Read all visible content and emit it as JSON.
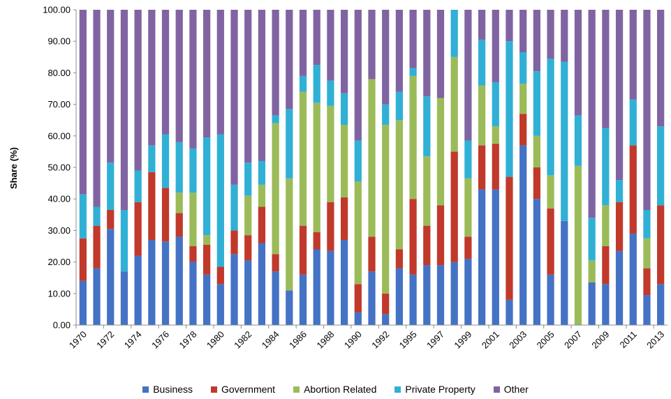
{
  "chart_data": {
    "type": "bar",
    "stacked": true,
    "title": "",
    "xlabel": "",
    "ylabel": "Share (%)",
    "ylim": [
      0,
      100
    ],
    "yticks": [
      "0.00",
      "10.00",
      "20.00",
      "30.00",
      "40.00",
      "50.00",
      "60.00",
      "70.00",
      "80.00",
      "90.00",
      "100.00"
    ],
    "grid": false,
    "legend_position": "bottom",
    "categories": [
      "1970",
      "1971",
      "1972",
      "1973",
      "1974",
      "1975",
      "1976",
      "1977",
      "1978",
      "1979",
      "1980",
      "1981",
      "1982",
      "1983",
      "1984",
      "1985",
      "1986",
      "1987",
      "1988",
      "1989",
      "1990",
      "1991",
      "1992",
      "1994",
      "1995",
      "1996",
      "1997",
      "1998",
      "1999",
      "2000",
      "2001",
      "2002",
      "2003",
      "2004",
      "2005",
      "2006",
      "2007",
      "2008",
      "2009",
      "2010",
      "2011",
      "2012",
      "2013"
    ],
    "x_tick_labels": [
      "1970",
      "1972",
      "1974",
      "1976",
      "1978",
      "1980",
      "1982",
      "1984",
      "1986",
      "1988",
      "1990",
      "1992",
      "1995",
      "1997",
      "1999",
      "2001",
      "2003",
      "2005",
      "2007",
      "2009",
      "2011",
      "2013"
    ],
    "series": [
      {
        "name": "Business",
        "color": "#4472C4",
        "values": [
          14,
          18,
          30.5,
          17,
          22,
          27,
          26.5,
          28,
          20,
          16,
          13,
          22.5,
          20.5,
          26,
          17,
          11,
          16,
          24,
          23.5,
          27,
          4,
          17,
          3.5,
          18,
          16,
          19,
          19,
          20,
          21,
          43,
          43,
          8,
          57,
          40,
          16,
          33,
          0,
          13.5,
          13,
          23.5,
          29,
          9.5,
          13
        ]
      },
      {
        "name": "Government",
        "color": "#C0392B",
        "values": [
          13.5,
          13.5,
          6,
          0,
          17,
          21.5,
          17,
          7.5,
          5,
          9.5,
          5.5,
          7.5,
          8,
          11.5,
          5.5,
          0,
          15.5,
          5.5,
          15.5,
          13.5,
          9,
          11,
          6.5,
          6,
          24,
          12.5,
          19,
          35,
          7,
          14,
          14.5,
          39,
          10,
          10,
          21,
          0,
          0,
          0,
          12,
          15.5,
          28,
          8.5,
          25
        ]
      },
      {
        "name": "Abortion Related",
        "color": "#9BBB59",
        "values": [
          0,
          0,
          0,
          0,
          0,
          0,
          0,
          6.5,
          17,
          3,
          0,
          0,
          12.5,
          7,
          41.5,
          35.5,
          42.5,
          41,
          30.5,
          23,
          32.5,
          50,
          53.5,
          41,
          39,
          22,
          34,
          30,
          18.5,
          19,
          5.5,
          0,
          9.5,
          10,
          10.5,
          0,
          50.5,
          7,
          13,
          0,
          0,
          9.5,
          0
        ]
      },
      {
        "name": "Private Property",
        "color": "#31B0D5",
        "values": [
          14,
          6,
          15,
          19.5,
          10,
          8.5,
          17,
          16,
          14,
          31,
          42,
          14.5,
          10.5,
          7.5,
          2.5,
          22,
          5,
          12,
          8,
          10,
          13,
          0,
          6.5,
          9,
          2.5,
          19,
          0,
          15,
          12,
          14.5,
          14,
          43,
          10,
          20.5,
          37,
          50.5,
          16,
          13.5,
          24.5,
          7,
          14.5,
          9,
          25
        ]
      },
      {
        "name": "Other",
        "color": "#8064A2",
        "values": [
          58.5,
          62.5,
          48.5,
          63.5,
          51,
          43,
          39.5,
          42,
          44,
          40.5,
          39.5,
          55.5,
          48.5,
          48,
          33.5,
          31.5,
          21,
          17.5,
          22.5,
          26.5,
          41.5,
          22,
          30,
          26,
          18.5,
          27.5,
          28,
          0,
          41.5,
          9.5,
          23,
          10,
          13.5,
          19.5,
          15.5,
          16.5,
          33.5,
          66,
          37.5,
          54,
          28.5,
          63.5,
          37
        ]
      }
    ]
  }
}
